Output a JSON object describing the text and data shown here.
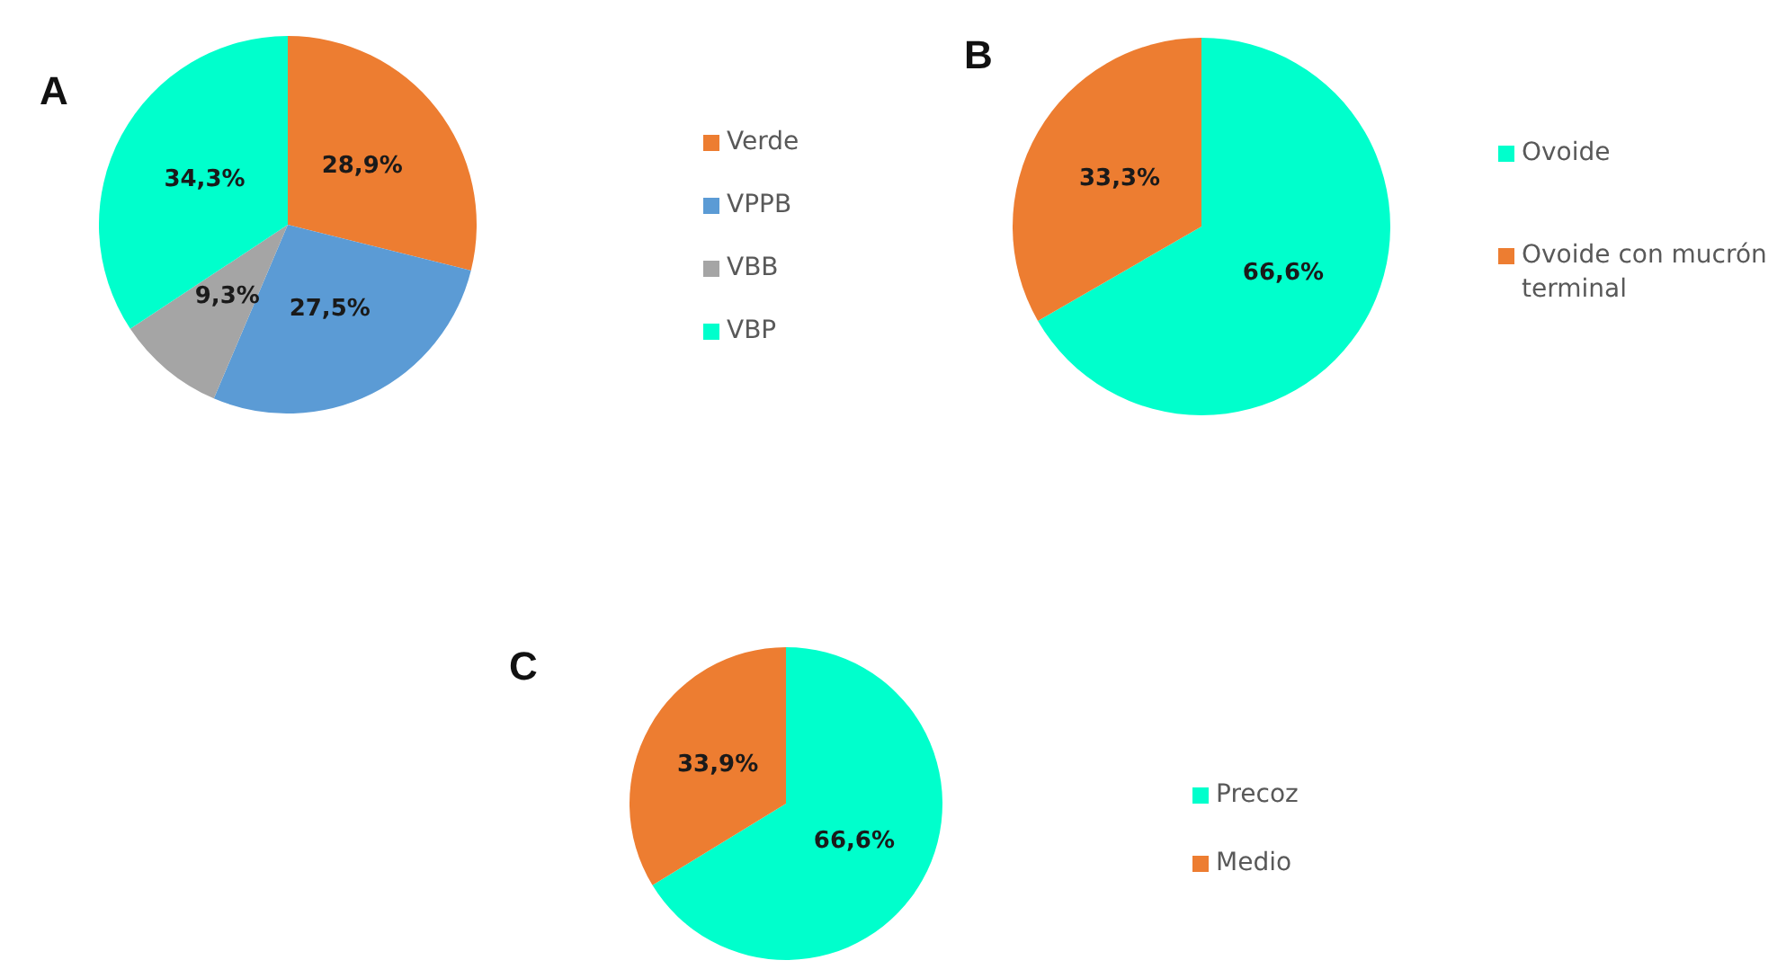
{
  "chart_data": [
    {
      "type": "pie",
      "title": "A",
      "categories": [
        "Verde",
        "VPPB",
        "VBB",
        "VBP"
      ],
      "values": [
        28.9,
        27.5,
        9.3,
        34.3
      ],
      "colors": [
        "#ed7d31",
        "#5b9bd5",
        "#a5a5a5",
        "#00ffcc"
      ],
      "value_labels": [
        "28,9%",
        "27,5%",
        "9,3%",
        "34,3%"
      ],
      "legend": "right"
    },
    {
      "type": "pie",
      "title": "B",
      "categories": [
        "Ovoide",
        "Ovoide con mucrón terminal"
      ],
      "values": [
        66.6,
        33.3
      ],
      "colors": [
        "#00ffcc",
        "#ed7d31"
      ],
      "value_labels": [
        "66,6%",
        "33,3%"
      ],
      "legend": "right"
    },
    {
      "type": "pie",
      "title": "C",
      "categories": [
        "Precoz",
        "Medio"
      ],
      "values": [
        66.6,
        33.9
      ],
      "colors": [
        "#00ffcc",
        "#ed7d31"
      ],
      "value_labels": [
        "66,6%",
        "33,9%"
      ],
      "legend": "right"
    }
  ]
}
